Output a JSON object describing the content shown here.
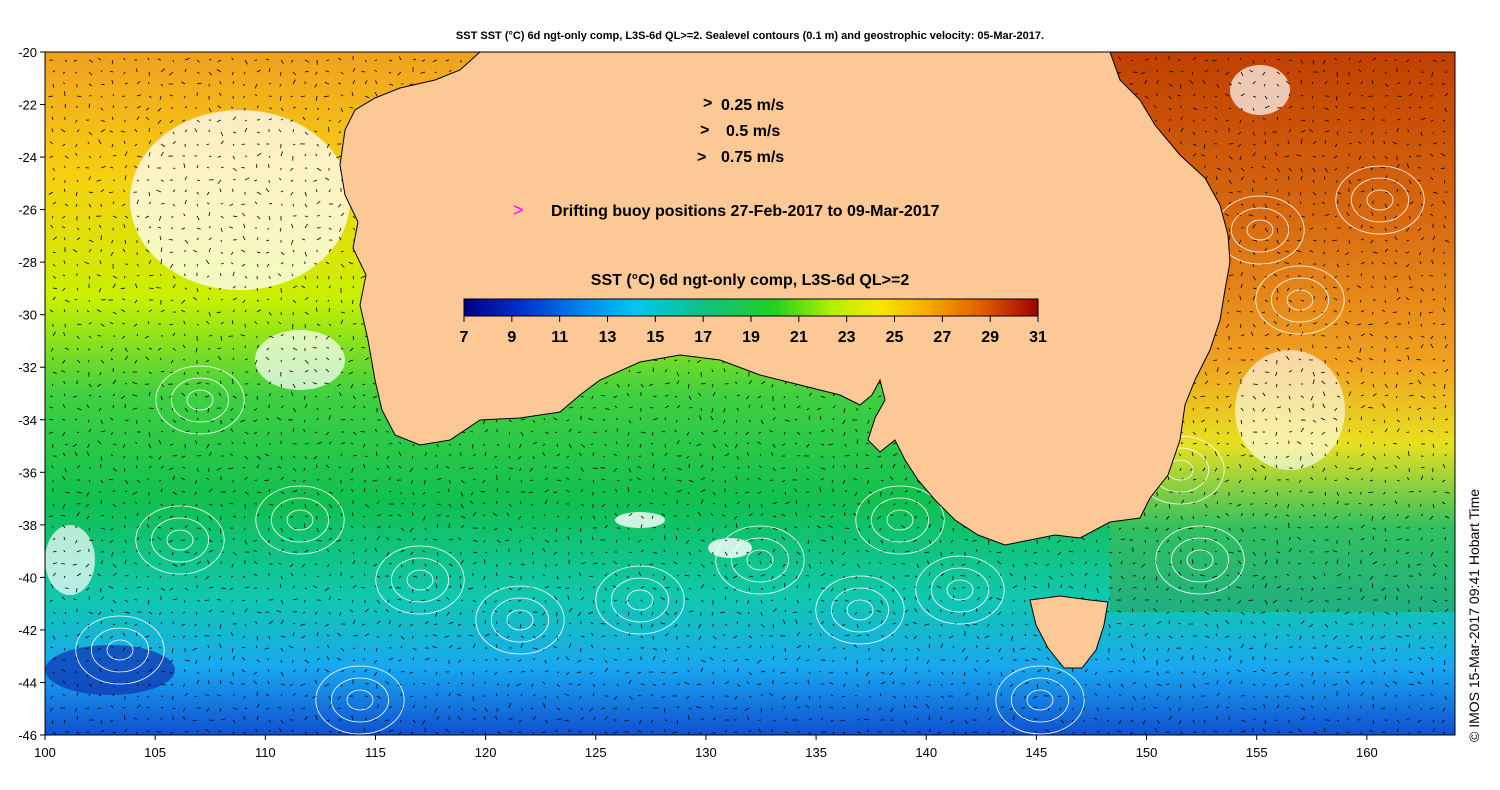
{
  "title": "SST SST (°C) 6d ngt-only comp, L3S-6d QL>=2. Sealevel contours (0.1 m) and geostrophic velocity: 05-Mar-2017.",
  "credit": "© IMOS 15-Mar-2017 09:41 Hobart Time",
  "velocity_legend": [
    {
      "label": "0.25 m/s",
      "speed": 0.25
    },
    {
      "label": "0.5 m/s",
      "speed": 0.5
    },
    {
      "label": "0.75 m/s",
      "speed": 0.75
    }
  ],
  "buoy_legend": {
    "symbol": ">",
    "label": "Drifting buoy positions 27-Feb-2017 to 09-Mar-2017",
    "color": "#ff00ff"
  },
  "colorbar": {
    "title": "SST (°C) 6d ngt-only comp, L3S-6d QL>=2",
    "min": 7,
    "max": 31,
    "ticks": [
      "7",
      "9",
      "11",
      "13",
      "15",
      "17",
      "19",
      "21",
      "23",
      "25",
      "27",
      "29",
      "31"
    ]
  },
  "axes": {
    "lon_range": [
      100,
      164
    ],
    "lat_range": [
      -46,
      -20
    ],
    "x_ticks": [
      "100",
      "105",
      "110",
      "115",
      "120",
      "125",
      "130",
      "135",
      "140",
      "145",
      "150",
      "155",
      "160"
    ],
    "y_ticks": [
      "-20",
      "-22",
      "-24",
      "-26",
      "-28",
      "-30",
      "-32",
      "-34",
      "-36",
      "-38",
      "-40",
      "-42",
      "-44",
      "-46"
    ]
  },
  "colors": {
    "land": "#fcc896",
    "contour": "#ffffff",
    "arrow": "#000000"
  }
}
